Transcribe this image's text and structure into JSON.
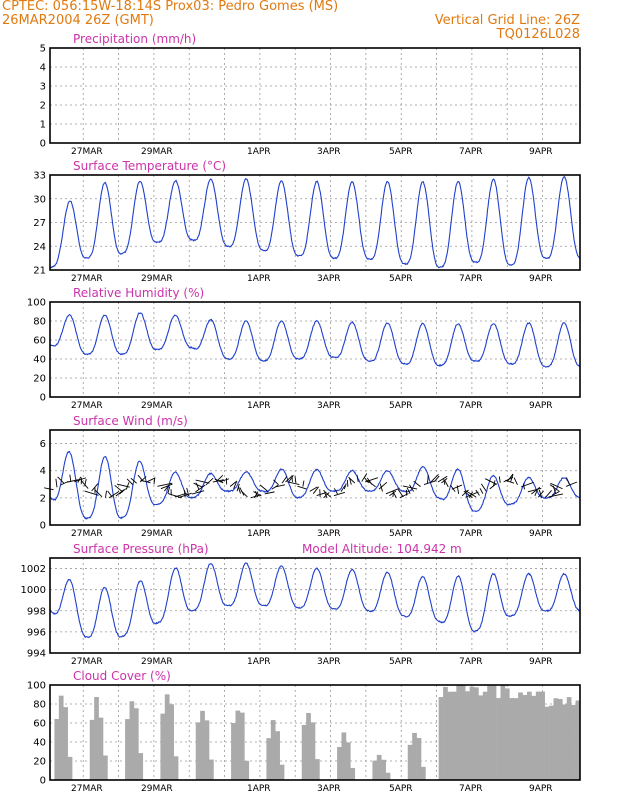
{
  "header": {
    "line1_left": "CPTEC:   056:15W-18:14S   Prox03: Pedro Gomes (MS)",
    "line2_left": "26MAR2004 26Z (GMT)",
    "line1_right": "Vertical Grid Line: 26Z",
    "line2_right": "TQ0126L028"
  },
  "colors": {
    "header": "#e07a10",
    "panel_title": "#cc33aa",
    "series_line": "#2040cc",
    "wind_barbs": "#000000",
    "cloud_fill": "#aaaaaa",
    "grid": "#999999"
  },
  "x_ticks": [
    "27MAR",
    "29MAR",
    "1APR",
    "3APR",
    "5APR",
    "7APR",
    "9APR"
  ],
  "chart_data": [
    {
      "type": "line",
      "title": "Precipitation (mm/h)",
      "ylim": [
        0,
        5
      ],
      "yticks": [
        "0",
        "1",
        "2",
        "3",
        "4",
        "5"
      ],
      "x_range_days": [
        0,
        15
      ],
      "series": [
        {
          "values": [
            0,
            0,
            0,
            0,
            0,
            0,
            0,
            0,
            0,
            0,
            0,
            0,
            0,
            0,
            0,
            0
          ]
        }
      ]
    },
    {
      "type": "line",
      "title": "Surface Temperature (°C)",
      "ylim": [
        21,
        33
      ],
      "yticks": [
        "21",
        "24",
        "27",
        "30",
        "33"
      ],
      "x_range_days": [
        0,
        15
      ],
      "diurnal": {
        "min": [
          21.3,
          22.5,
          23.0,
          24.5,
          24.8,
          24.0,
          23.5,
          22.8,
          22.5,
          22.4,
          21.8,
          21.3,
          22.0,
          21.6,
          22.5
        ],
        "max": [
          27.5,
          31.5,
          32.5,
          32.0,
          32.5,
          32.5,
          32.5,
          32.0,
          32.3,
          32.0,
          32.3,
          32.0,
          32.3,
          32.5,
          32.8
        ]
      }
    },
    {
      "type": "line",
      "title": "Relative Humidity (%)",
      "ylim": [
        0,
        100
      ],
      "yticks": [
        "0",
        "20",
        "40",
        "60",
        "80",
        "100"
      ],
      "x_range_days": [
        0,
        15
      ],
      "diurnal": {
        "min": [
          55,
          45,
          45,
          50,
          52,
          40,
          38,
          40,
          42,
          38,
          35,
          33,
          38,
          35,
          32
        ],
        "max": [
          88,
          85,
          87,
          90,
          83,
          80,
          80,
          80,
          80,
          78,
          78,
          77,
          77,
          78,
          78
        ]
      }
    },
    {
      "type": "line",
      "title": "Surface Wind (m/s)",
      "ylim": [
        0,
        7
      ],
      "yticks": [
        "0",
        "2",
        "4",
        "6"
      ],
      "x_range_days": [
        0,
        15
      ],
      "diurnal": {
        "min": [
          2.0,
          0.5,
          0.5,
          1.5,
          2.0,
          2.5,
          2.5,
          2.0,
          2.5,
          2.5,
          2.5,
          2.0,
          1.0,
          1.5,
          2.0
        ],
        "max": [
          6.5,
          4.5,
          5.5,
          4.0,
          3.8,
          3.8,
          4.0,
          4.2,
          4.0,
          4.0,
          4.0,
          4.5,
          3.8,
          3.5,
          3.5
        ]
      }
    },
    {
      "type": "line",
      "title": "Surface Pressure (hPa)",
      "annotation": "Model Altitude: 104.942  m",
      "ylim": [
        994,
        1003
      ],
      "yticks": [
        "994",
        "996",
        "998",
        "1000",
        "1002"
      ],
      "x_range_days": [
        0,
        15
      ],
      "diurnal": {
        "min": [
          998.0,
          995.5,
          995.5,
          996.8,
          998.0,
          998.5,
          998.5,
          998.3,
          998.2,
          998.0,
          997.5,
          997.0,
          996.0,
          997.5,
          998.0
        ],
        "max": [
          1001.5,
          1000.5,
          1000.0,
          1001.5,
          1002.5,
          1002.5,
          1002.5,
          1002.0,
          1002.0,
          1001.8,
          1001.5,
          1001.0,
          1001.5,
          1001.5,
          1001.5
        ]
      }
    },
    {
      "type": "bar",
      "title": "Cloud Cover (%)",
      "ylim": [
        0,
        100
      ],
      "yticks": [
        "0",
        "20",
        "40",
        "60",
        "80",
        "100"
      ],
      "x_range_days": [
        0,
        15
      ],
      "daily_peak": [
        95,
        90,
        100,
        100,
        90,
        85,
        65,
        80,
        55,
        30,
        60,
        100,
        100,
        100,
        90
      ]
    }
  ]
}
